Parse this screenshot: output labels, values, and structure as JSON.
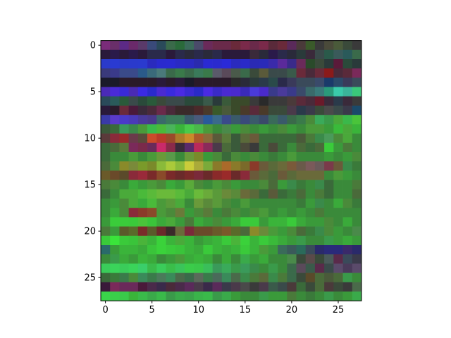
{
  "chart_data": {
    "type": "heatmap",
    "title": "",
    "xlabel": "",
    "ylabel": "",
    "rows": 28,
    "cols": 28,
    "xlim": [
      -0.5,
      27.5
    ],
    "ylim": [
      27.5,
      -0.5
    ],
    "y_axis_inverted": true,
    "grid": false,
    "colorbar": false,
    "color_encoding": "rgb image (row-major pixels)",
    "xticks": [
      0,
      5,
      10,
      15,
      20,
      25
    ],
    "xtick_labels": [
      "0",
      "5",
      "10",
      "15",
      "20",
      "25"
    ],
    "yticks": [
      0,
      5,
      10,
      15,
      20,
      25
    ],
    "ytick_labels": [
      "0",
      "5",
      "10",
      "15",
      "20",
      "25"
    ],
    "row_colors": [
      [
        "#7a2c7a",
        "#6a2f6a",
        "#5c2a86",
        "#6a2a6a",
        "#5a3a6a",
        "#3a4a7a",
        "#2a4a5a",
        "#3a6a4a",
        "#2a6a3a",
        "#3a6a5a",
        "#4a4a6a",
        "#6a2a5a",
        "#6a2a4a",
        "#6a2a4a",
        "#6a2a3a",
        "#7a2a4a",
        "#6a2a4a",
        "#7a2a4a",
        "#5a2a3a",
        "#6a2a3a",
        "#5a2a5a",
        "#4a3a3a",
        "#3a5a2a",
        "#3a3a3a",
        "#4a4a3a",
        "#4a5a3a",
        "#3a4a3a",
        "#3a3a3a"
      ],
      [
        "#2a1a3a",
        "#2a1a4a",
        "#2a1a3a",
        "#2a1a4a",
        "#2a1a3a",
        "#2a2a4a",
        "#2a2a4a",
        "#2a1a3a",
        "#2a2a4a",
        "#2a2a3a",
        "#2a2a4a",
        "#2a2a3a",
        "#2a2a4a",
        "#2a1a3a",
        "#2a1a3a",
        "#2a1a3a",
        "#3a2a3a",
        "#2a2a3a",
        "#2a1a4a",
        "#2a2a4a",
        "#2a2a3a",
        "#2a3a3a",
        "#3a2a3a",
        "#3a4a4a",
        "#2a5a4a",
        "#3a5a5a",
        "#2a5a5a",
        "#3a6a4a"
      ],
      [
        "#2a3aca",
        "#2a3ad2",
        "#2a3aca",
        "#2a3acc",
        "#2a3ace",
        "#2a2abe",
        "#2a2ace",
        "#2a2ad0",
        "#2a2ac4",
        "#2a2ac0",
        "#2a2aae",
        "#2a2ad2",
        "#2a2ace",
        "#2a2ad8",
        "#2a2abe",
        "#2a2ac8",
        "#2a2ab4",
        "#2a2ab8",
        "#3a2aaa",
        "#5a2a9a",
        "#3a2a8a",
        "#6a2a5a",
        "#2a4a2a",
        "#3a4a3a",
        "#2a3a3a",
        "#5a1a3a",
        "#2a4a3a",
        "#2a3a3a"
      ],
      [
        "#3a3a7a",
        "#3a3a8a",
        "#3a4a8a",
        "#3a4a8a",
        "#2a5a8a",
        "#3a6a7a",
        "#4a7a7a",
        "#3a6a4a",
        "#3a7a4a",
        "#3a6a4a",
        "#3a7a5a",
        "#3a7a4a",
        "#5a5a6a",
        "#5a4a5a",
        "#4a5a4a",
        "#3a6a4a",
        "#3a4a3a",
        "#5a5a3a",
        "#3a4a4a",
        "#3a4a4a",
        "#3a5a4a",
        "#6a2a3a",
        "#4a2a3a",
        "#6a2a3a",
        "#8a1a1a",
        "#4a2a3a",
        "#5a2a3a",
        "#7a2a5a"
      ],
      [
        "#1a1a2a",
        "#1a1a2a",
        "#2a1a2a",
        "#2a1a2a",
        "#2a1a2a",
        "#2a1a2a",
        "#2a1a3a",
        "#2a1a2a",
        "#2a1a3a",
        "#1a1a2a",
        "#2a1a2a",
        "#2a1a2a",
        "#2a1a2a",
        "#2a1a2a",
        "#2a2a2a",
        "#2a2a3a",
        "#2a3a3a",
        "#2a3a4a",
        "#2a4a4a",
        "#2a2a4a",
        "#3a3a5a",
        "#3a4a5a",
        "#3a4a5a",
        "#3a4a6a",
        "#1a3a6a",
        "#2a4a6a",
        "#3a3a5a",
        "#3a4a5a"
      ],
      [
        "#4a2ab8",
        "#4a2ad8",
        "#3a2ad8",
        "#4a2ab4",
        "#3a2ae2",
        "#2a2acc",
        "#4a2ad2",
        "#3a2ade",
        "#4a2ae2",
        "#3a2ad2",
        "#2a2ac8",
        "#4a2ae2",
        "#3a2ac8",
        "#4a2ad2",
        "#4a2acc",
        "#3a2ab8",
        "#4a3ad8",
        "#4a2acc",
        "#3a3a8a",
        "#4a3a9a",
        "#3a3a8a",
        "#3a4a6a",
        "#3a6a6a",
        "#3a7a7a",
        "#2a9a7a",
        "#3acaaa",
        "#3ab49a",
        "#3ac87a"
      ],
      [
        "#2a4a5a",
        "#2a5a5a",
        "#2a5a3a",
        "#3a4a4a",
        "#2a4a3a",
        "#2a5a3a",
        "#3a4a3a",
        "#3a4a4a",
        "#3a4a4a",
        "#2a4a3a",
        "#2a4a3a",
        "#3a5a4a",
        "#2a3a3a",
        "#3a5a3a",
        "#3a4a2a",
        "#3a4a2a",
        "#3a3a3a",
        "#2a2a2a",
        "#3a3a3a",
        "#3a3a3a",
        "#4a3a3a",
        "#5a2a3a",
        "#4a2a3a",
        "#6a1a2a",
        "#3a2a3a",
        "#2a3a4a",
        "#3a2a3a",
        "#3a3a3a"
      ],
      [
        "#2a1a3a",
        "#2a1a2a",
        "#6a2a3a",
        "#4a1a3a",
        "#3a2a3a",
        "#4a2a3a",
        "#6a2a4a",
        "#4a2a3a",
        "#3a2a2a",
        "#3a2a2a",
        "#4a2a2a",
        "#4a3a2a",
        "#3a5a2a",
        "#4a5a3a",
        "#3a4a2a",
        "#4a3a2a",
        "#5a2a3a",
        "#4a3a2a",
        "#3a4a3a",
        "#3a4a3a",
        "#4a3a4a",
        "#2a3a4a",
        "#3a3a4a",
        "#3a4a3a",
        "#4a4a4a",
        "#3a4a4a",
        "#3a3a4a",
        "#1a4a6a"
      ],
      [
        "#3a3aa8",
        "#5a3aca",
        "#4a3ac8",
        "#4a3ab8",
        "#4a3a9a",
        "#4a3a8a",
        "#3a6a6a",
        "#3a7a5a",
        "#3a7a5a",
        "#3a5a6a",
        "#4a5a7a",
        "#2a5a9a",
        "#3a6a8a",
        "#3a4a8a",
        "#3a5a6a",
        "#3a4a7a",
        "#3a5a6a",
        "#3a4a6a",
        "#3a6a5a",
        "#3a5a6a",
        "#3a6a4a",
        "#3a7a4a",
        "#4a8a3a",
        "#3aaa5a",
        "#3a9a4a",
        "#4aa83a",
        "#3ab84a",
        "#4ac43a"
      ],
      [
        "#3a5a3a",
        "#3a6a3a",
        "#3a9a5a",
        "#3a8a4a",
        "#4a9a3a",
        "#3aba4a",
        "#4aba3a",
        "#4ab45a",
        "#3ab43a",
        "#4aca4a",
        "#4ab84a",
        "#4a9a3a",
        "#3a8a3a",
        "#4a8a4a",
        "#3a9a3a",
        "#4a8a3a",
        "#3a8a3a",
        "#3a9a3a",
        "#3a8a3a",
        "#4a8a3a",
        "#3a9a3a",
        "#3a8a3a",
        "#4a9a3a",
        "#4a9a3a",
        "#3a9a3a",
        "#3aba3a",
        "#4aa83a",
        "#3ab43a"
      ],
      [
        "#5a3a3a",
        "#8a2a3a",
        "#9a2a2a",
        "#6a3a4a",
        "#5a4a3a",
        "#cc4a2a",
        "#ba3a2a",
        "#9a4a2a",
        "#aa7a2a",
        "#ca8a2a",
        "#aa5a2a",
        "#8a6a3a",
        "#5a5a3a",
        "#5a7a3a",
        "#3a5a3a",
        "#5a6a3a",
        "#6a5a3a",
        "#3a6a3a",
        "#3a6a3a",
        "#3a6a3a",
        "#3a6a3a",
        "#4a5a3a",
        "#4a7a3a",
        "#3a8a4a",
        "#4a9a5a",
        "#4a8a3a",
        "#4aa83a",
        "#3a8a3a"
      ],
      [
        "#3a6a3a",
        "#4a6a3a",
        "#5a7a3a",
        "#7a2a5a",
        "#7a2a4a",
        "#6a2a5a",
        "#ca2a6a",
        "#8a2a4a",
        "#3a2a3a",
        "#5a2a6a",
        "#ba2a5a",
        "#8a2a5a",
        "#4a3a4a",
        "#4a6a3a",
        "#3a5a3a",
        "#4a4a3a",
        "#3a3a3a",
        "#3a6a3a",
        "#4a4a3a",
        "#3a6a3a",
        "#3a8a3a",
        "#4a6a3a",
        "#3a6a3a",
        "#4a6a3a",
        "#3acc3a",
        "#3a9a3a",
        "#4a7a3a",
        "#3a8a3a"
      ],
      [
        "#3a6a3a",
        "#3a8a3a",
        "#3a8a3a",
        "#4a9a3a",
        "#3a8a3a",
        "#4a9a3a",
        "#6a9a3a",
        "#5a9a4a",
        "#3a8a3a",
        "#6a9a3a",
        "#7a8a2a",
        "#3a9a3a",
        "#4a8a3a",
        "#3a6a3a",
        "#4a8a3a",
        "#3a8a3a",
        "#4a8a3a",
        "#3a8a3a",
        "#3a7a3a",
        "#3a8a3a",
        "#4a9a3a",
        "#3a8a3a",
        "#3a8a3a",
        "#3a8a3a",
        "#3a9a3a",
        "#3a8a3a",
        "#3a9a3a",
        "#4a8a3a"
      ],
      [
        "#4a6a3a",
        "#4a8a3a",
        "#8a8a2a",
        "#7a8a3a",
        "#7a9a2a",
        "#7a8a2a",
        "#8aba3a",
        "#aaca3a",
        "#8aba3a",
        "#cacc3a",
        "#aaaa3a",
        "#7aaa3a",
        "#8a7a2a",
        "#aa6a2a",
        "#8a7a2a",
        "#7a6a2a",
        "#8a3a2a",
        "#6a5a3a",
        "#5a6a3a",
        "#6a6a3a",
        "#7a5a3a",
        "#6a5a4a",
        "#7a5a5a",
        "#6a5a5a",
        "#7a3a4a",
        "#6a5a3a",
        "#3a8a4a",
        "#3a7a3a"
      ],
      [
        "#6a5a2a",
        "#6a4a2a",
        "#5a4a2a",
        "#8a2a3a",
        "#9a2a3a",
        "#7a2a2a",
        "#8a4a2a",
        "#7a2a2a",
        "#6a2a2a",
        "#7a2a2a",
        "#7a2a3a",
        "#6a2a2a",
        "#8a2a2a",
        "#9a2a2a",
        "#6a2a2a",
        "#8a2a3a",
        "#6a5a3a",
        "#5a6a3a",
        "#4a6a3a",
        "#6a5a3a",
        "#5a6a3a",
        "#6a6a3a",
        "#6a6a3a",
        "#6a6a3a",
        "#3a8a3a",
        "#4a9a3a",
        "#3a9a3a",
        "#3a8a3a"
      ],
      [
        "#4a7a3a",
        "#4a8a3a",
        "#3a8a3a",
        "#3aaa3a",
        "#3a9a3a",
        "#4a9a3a",
        "#4a8a3a",
        "#3aaa3a",
        "#3a9a3a",
        "#5aaa3a",
        "#4a8a3a",
        "#3a8a3a",
        "#4a9a3a",
        "#4a8a3a",
        "#3a9a3a",
        "#3a8a3a",
        "#3a8a3a",
        "#4a8a3a",
        "#4a6a3a",
        "#3a9a3a",
        "#3a8a4a",
        "#3a7a3a",
        "#3a8a3a",
        "#3a8a4a",
        "#3a6a3a",
        "#3a8a3a",
        "#3a8a3a",
        "#4a7a3a"
      ],
      [
        "#3a6a3a",
        "#3a8a3a",
        "#4aaa3a",
        "#4aaa3a",
        "#4aba3a",
        "#5aba3a",
        "#6aba3a",
        "#6aba3a",
        "#5aba3a",
        "#4aaa3a",
        "#6aba3a",
        "#6aaa3a",
        "#5a9a3a",
        "#6a8a3a",
        "#5a8a3a",
        "#6a6a3a",
        "#5a6a3a",
        "#3a6a3a",
        "#5a5a3a",
        "#3a6a3a",
        "#3a7a3a",
        "#4a6a3a",
        "#3a8a3a",
        "#4a7a3a",
        "#3a6a3a",
        "#3a8a3a",
        "#3a8a3a",
        "#4a6a3a"
      ],
      [
        "#3a8a3a",
        "#3a9a3a",
        "#4a8a3a",
        "#4aaa3a",
        "#3aaa3a",
        "#4aba3a",
        "#4a9a3a",
        "#5a9a3a",
        "#4aaa3a",
        "#3a8a3a",
        "#6a9a3a",
        "#5a8a3a",
        "#5a9a3a",
        "#4a8a3a",
        "#3a8a3a",
        "#4a9a3a",
        "#3a8a3a",
        "#3a8a3a",
        "#3a8a3a",
        "#3a8a3a",
        "#3a8a3a",
        "#3a7a3a",
        "#3a9a3a",
        "#3a8a4a",
        "#3a8a3a",
        "#3aaa3a",
        "#4a8a3a",
        "#3a7a3a"
      ],
      [
        "#3a8a3a",
        "#3aaa3a",
        "#4a8a3a",
        "#8a2a3a",
        "#8a3a2a",
        "#8a4a2a",
        "#4a9a3a",
        "#4a8a3a",
        "#6a7a3a",
        "#3a9a3a",
        "#4a8a3a",
        "#5a7a3a",
        "#3a8a3a",
        "#4a7a3a",
        "#4a8a3a",
        "#3a8a3a",
        "#4a8a3a",
        "#4a9a3a",
        "#3a8a3a",
        "#3a9a3a",
        "#3a8a3a",
        "#3a9a3a",
        "#3a8a3a",
        "#4a7a3a",
        "#3a8a3a",
        "#3a8a3a",
        "#3a8a3a",
        "#3a8a3a"
      ],
      [
        "#3a9a3a",
        "#3acc3a",
        "#3acc3a",
        "#3aca3a",
        "#4ac43a",
        "#3ac43a",
        "#3aaa3a",
        "#4aaa3a",
        "#3a9a3a",
        "#4a7a3a",
        "#3aaa3a",
        "#3a9a3a",
        "#4a8a3a",
        "#3a9a3a",
        "#3aaa3a",
        "#3aca3a",
        "#3aca3a",
        "#3a9a3a",
        "#3ab43a",
        "#3ab43a",
        "#3aca3a",
        "#3aaa3a",
        "#3a9a3a",
        "#3a9a3a",
        "#4a8a3a",
        "#3a8a3a",
        "#3aaa3a",
        "#3a8a3a"
      ],
      [
        "#4a7a3a",
        "#3a9a3a",
        "#5a5a2a",
        "#5a6a2a",
        "#7a2a2a",
        "#5a5a2a",
        "#6a2a2a",
        "#3a2a2a",
        "#6a6a3a",
        "#7a2a3a",
        "#6a4a2a",
        "#6a4a2a",
        "#6a5a2a",
        "#7a5a2a",
        "#5a6a2a",
        "#4a6a3a",
        "#8a8a2a",
        "#6a8a3a",
        "#4a9a3a",
        "#3a9a3a",
        "#4a8a3a",
        "#4a6a3a",
        "#3a7a3a",
        "#3a8a4a",
        "#4a8a3a",
        "#3a9a3a",
        "#3a8a3a",
        "#4a8a4a"
      ],
      [
        "#3aca3a",
        "#3ae43a",
        "#3aca3a",
        "#3ac43a",
        "#4ab43a",
        "#3ab43a",
        "#3ad23a",
        "#3ab43a",
        "#4aaa3a",
        "#3ab43a",
        "#3a9a3a",
        "#3aaa3a",
        "#3ab43a",
        "#3aca3a",
        "#4ab43a",
        "#3ad23a",
        "#3ab43a",
        "#3aca3a",
        "#3aba3a",
        "#3aaa3a",
        "#3a9a3a",
        "#3a9a4a",
        "#3a8a3a",
        "#3a8a3a",
        "#3a9a4a",
        "#3a9a3a",
        "#3aaa3a",
        "#3a9a3a"
      ],
      [
        "#2a6a6a",
        "#3a9a3a",
        "#3ab43a",
        "#3ab43a",
        "#3aaa3a",
        "#3ac43a",
        "#3ad23a",
        "#3aca3a",
        "#3ac43a",
        "#3ab43a",
        "#3aaa3a",
        "#3aca3a",
        "#3ab43a",
        "#3aaa3a",
        "#3ab43a",
        "#3aca3a",
        "#3ab43a",
        "#4a9a3a",
        "#3a9a3a",
        "#3a6a5a",
        "#3a5a5a",
        "#2a6a5a",
        "#3a4a5a",
        "#2a2a6a",
        "#2a2a7a",
        "#2a2a7a",
        "#3a2a6a",
        "#2a2a6a"
      ],
      [
        "#3a8a3a",
        "#3a9a4a",
        "#3aaa3a",
        "#3a9a3a",
        "#3ab43a",
        "#3aaa3a",
        "#3a8a3a",
        "#3a9a3a",
        "#4a9a3a",
        "#3aaa3a",
        "#3ab43a",
        "#3aaa3a",
        "#3a8a3a",
        "#3aaa3a",
        "#3a8a3a",
        "#3aaa4a",
        "#3a9a3a",
        "#3aaa3a",
        "#3a8a3a",
        "#3a8a3a",
        "#4a8a4a",
        "#3a4a3a",
        "#5a4a4a",
        "#3a4a3a",
        "#4a5a5a",
        "#5a2a4a",
        "#3a4a5a",
        "#3a3a4a"
      ],
      [
        "#3acc5a",
        "#3ad45a",
        "#3acc5a",
        "#3ad45a",
        "#3ace6a",
        "#3aba4a",
        "#3acc5a",
        "#3abe4a",
        "#3ac45a",
        "#3acc4a",
        "#3ac84a",
        "#3abe5a",
        "#3a9a5a",
        "#3aaa5a",
        "#3a9a4a",
        "#3a9a5a",
        "#3a8a4a",
        "#3a8a3a",
        "#3a9a4a",
        "#3a8a3a",
        "#3a6a4a",
        "#5a4a5a",
        "#3a5a4a",
        "#5a2a4a",
        "#3a4a4a",
        "#5a4a6a",
        "#4a3a5a",
        "#5a4a6a"
      ],
      [
        "#3a6a3a",
        "#3a7a3a",
        "#3a7a4a",
        "#4a8a3a",
        "#3a8a5a",
        "#3a7a4a",
        "#4a7a5a",
        "#3a8a5a",
        "#4a6a4a",
        "#3a6a4a",
        "#5a6a5a",
        "#3a7a4a",
        "#4a6a5a",
        "#3a8a5a",
        "#4a6a4a",
        "#3a8a4a",
        "#4a7a3a",
        "#5a6a3a",
        "#3a8a4a",
        "#4a7a3a",
        "#3a6a4a",
        "#3a4a3a",
        "#5a4a2a",
        "#4a6a3a",
        "#4a5a3a",
        "#4a6a3a",
        "#3a9a4a",
        "#3a8a3a"
      ],
      [
        "#3a1a3a",
        "#7a2a5a",
        "#6a2a5a",
        "#6a2a5a",
        "#4a1a3a",
        "#4a2a4a",
        "#3a2a4a",
        "#4a2a3a",
        "#4a2a4a",
        "#5a2a5a",
        "#4a3a4a",
        "#3a2a4a",
        "#5a2a5a",
        "#3a3a4a",
        "#4a3a4a",
        "#4a4a4a",
        "#3a3a3a",
        "#4a3a4a",
        "#3a5a4a",
        "#3a4a4a",
        "#4a3a3a",
        "#3a6a3a",
        "#3a4a3a",
        "#4a6a3a",
        "#4a3a3a",
        "#3a4a3a",
        "#3a3a3a",
        "#4a6a4a"
      ],
      [
        "#3ad44a",
        "#3ace4a",
        "#3aca4a",
        "#3ab43a",
        "#3aba4a",
        "#3aaa4a",
        "#3aba4a",
        "#3a9a4a",
        "#3aaa4a",
        "#3aa44a",
        "#3ab44a",
        "#3aba4a",
        "#3a9a4a",
        "#3aaa4a",
        "#3a9a3a",
        "#3a8a3a",
        "#3a8a3a",
        "#3a9a4a",
        "#3a9a3a",
        "#3a9a3a",
        "#4a7a3a",
        "#3a8a3a",
        "#3a7a3a",
        "#3a8a3a",
        "#3a9a4a",
        "#3a8a3a",
        "#3a9a3a",
        "#3aaa4a"
      ]
    ]
  }
}
